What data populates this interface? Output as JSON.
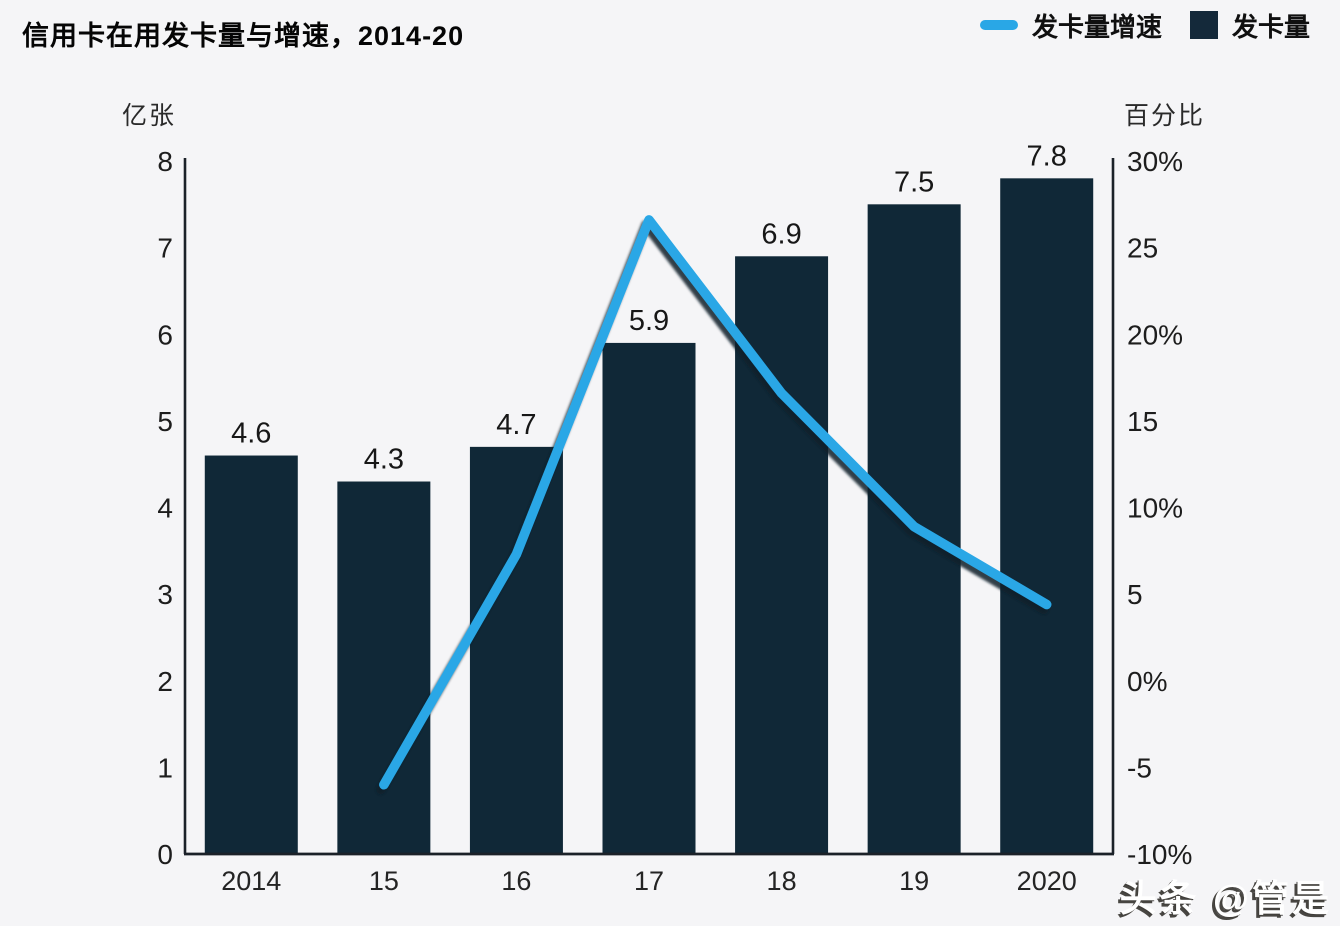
{
  "page": {
    "title": "信用卡在用发卡量与增速，2014-20",
    "watermark": "头条 @管是"
  },
  "legend": {
    "items": [
      {
        "label": "发卡量增速",
        "swatch": "line",
        "color": "#29a7e6"
      },
      {
        "label": "发卡量",
        "swatch": "square",
        "color": "#14293a"
      }
    ]
  },
  "chart_data": {
    "type": "combo",
    "categories": [
      "2014",
      "15",
      "16",
      "17",
      "18",
      "19",
      "2020"
    ],
    "series": [
      {
        "name": "发卡量",
        "type": "bar",
        "axis": "left",
        "unit": "亿张",
        "values": [
          4.6,
          4.3,
          4.7,
          5.9,
          6.9,
          7.5,
          7.8
        ],
        "labels": [
          "4.6",
          "4.3",
          "4.7",
          "5.9",
          "6.9",
          "7.5",
          "7.8"
        ],
        "color": "#102837"
      },
      {
        "name": "发卡量增速",
        "type": "line",
        "axis": "right",
        "unit": "%",
        "values": [
          null,
          -6,
          7.3,
          26.6,
          16.6,
          8.9,
          4.4
        ],
        "color": "#29a7e6"
      }
    ],
    "left_axis": {
      "label": "亿张",
      "min": 0,
      "max": 8,
      "ticks": [
        "8",
        "7",
        "6",
        "5",
        "4",
        "3",
        "2",
        "1",
        "0"
      ]
    },
    "right_axis": {
      "label": "百分比",
      "min": -10,
      "max": 30,
      "ticks": [
        "30%",
        "25",
        "20%",
        "15",
        "10%",
        "5",
        "0%",
        "-5",
        "-10%"
      ]
    },
    "grid": false,
    "legend_position": "top-right",
    "background": "#f5f5f7",
    "axis_color": "#1b2128"
  }
}
